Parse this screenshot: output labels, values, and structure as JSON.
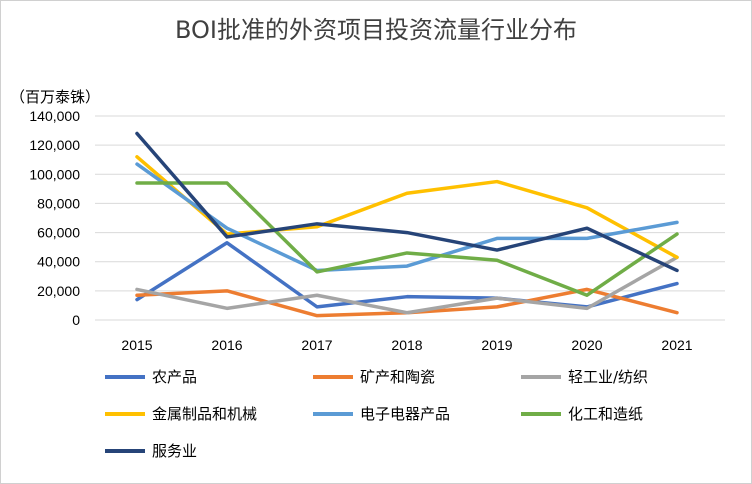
{
  "chart_data": {
    "type": "line",
    "title": "BOI批准的外资项目投资流量行业分布",
    "unit_label": "（百万泰铢）",
    "x": [
      "2015",
      "2016",
      "2017",
      "2018",
      "2019",
      "2020",
      "2021"
    ],
    "y_ticks": [
      "0",
      "20,000",
      "40,000",
      "60,000",
      "80,000",
      "100,000",
      "120,000",
      "140,000"
    ],
    "ylim": [
      0,
      140000
    ],
    "grid": true,
    "legend_position": "bottom",
    "series": [
      {
        "name": "农产品",
        "color": "#4472c4",
        "values": [
          14000,
          53000,
          9000,
          16000,
          15000,
          9000,
          25000
        ]
      },
      {
        "name": "矿产和陶瓷",
        "color": "#ed7d31",
        "values": [
          17000,
          20000,
          3000,
          5000,
          9000,
          21000,
          5000
        ]
      },
      {
        "name": "轻工业/纺织",
        "color": "#a5a5a5",
        "values": [
          21000,
          8000,
          17000,
          5000,
          15000,
          8000,
          43000
        ]
      },
      {
        "name": "金属制品和机械",
        "color": "#ffc000",
        "values": [
          112000,
          59000,
          64000,
          87000,
          95000,
          77000,
          43000
        ]
      },
      {
        "name": "电子电器产品",
        "color": "#5b9bd5",
        "values": [
          107000,
          63000,
          34000,
          37000,
          56000,
          56000,
          67000
        ]
      },
      {
        "name": "化工和造纸",
        "color": "#70ad47",
        "values": [
          94000,
          94000,
          33000,
          46000,
          41000,
          17000,
          59000
        ]
      },
      {
        "name": "服务业",
        "color": "#264478",
        "values": [
          128000,
          57000,
          66000,
          60000,
          48000,
          63000,
          34000
        ]
      }
    ]
  }
}
